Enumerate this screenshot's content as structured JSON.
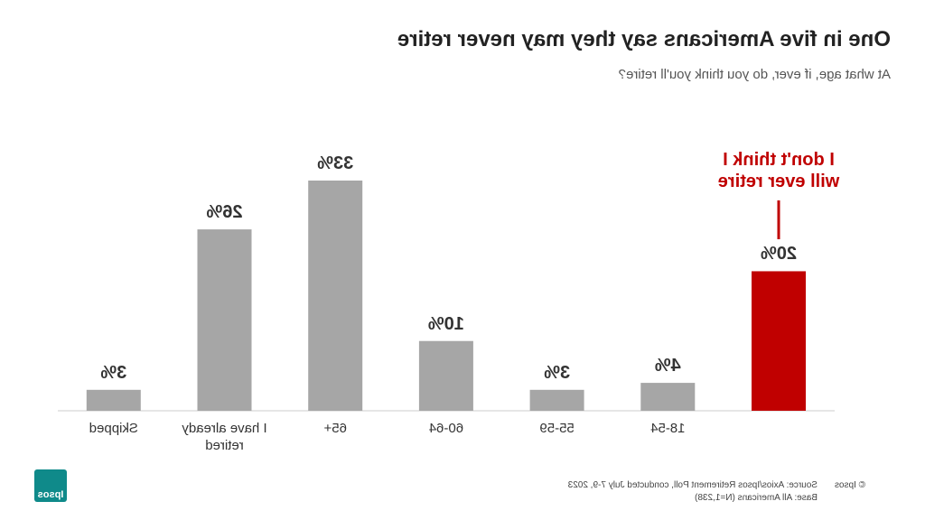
{
  "chart_data": {
    "type": "bar",
    "title": "One in five Americans say they may never retire",
    "subtitle": "At what age, if ever, do you think you'll retire?",
    "annotation": "I don't think I will ever retire",
    "categories": [
      null,
      "18-54",
      "55-59",
      "60-64",
      "65+",
      "I have already retired",
      "Skipped"
    ],
    "values": [
      20,
      4,
      3,
      10,
      33,
      26,
      3
    ],
    "value_labels": [
      "20%",
      "4%",
      "3%",
      "10%",
      "33%",
      "26%",
      "3%"
    ],
    "colors": [
      "#c00000",
      "#a6a6a6",
      "#a6a6a6",
      "#a6a6a6",
      "#a6a6a6",
      "#a6a6a6",
      "#a6a6a6"
    ],
    "footer": {
      "copyright": "© Ipsos",
      "source": "Source: Axios/Ipsos Retirement Poll, conducted July 7-9, 2023",
      "base": "Base: All Americans (N=1,238)",
      "logo": "Ipsos"
    }
  }
}
